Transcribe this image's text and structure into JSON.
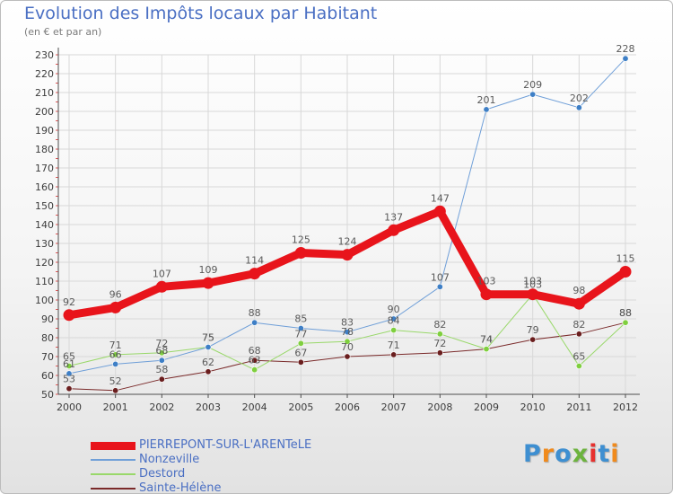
{
  "header": {
    "title": "Evolution des Impôts locaux par Habitant",
    "subtitle": "(en € et par an)"
  },
  "logo": {
    "text": "Proxiti",
    "letter_colors": [
      "#3e8fd1",
      "#f08a1c",
      "#3e8fd1",
      "#6cb33e",
      "#e6312f",
      "#3e8fd1",
      "#f08a1c"
    ]
  },
  "colors": {
    "grid": "#d8d8d8",
    "axis": "#4d4d4d",
    "tick_text": "#3c3c3c",
    "label_text": "#5a5a5a"
  },
  "chart_data": {
    "type": "line",
    "title": "Evolution des Impôts locaux par Habitant",
    "subtitle": "(en € et par an)",
    "x": [
      "2000",
      "2001",
      "2002",
      "2003",
      "2004",
      "2005",
      "2006",
      "2007",
      "2008",
      "2009",
      "2010",
      "2011",
      "2012"
    ],
    "yticks": [
      50,
      60,
      70,
      80,
      90,
      100,
      110,
      120,
      130,
      140,
      150,
      160,
      170,
      180,
      190,
      200,
      210,
      220,
      230
    ],
    "ylim": [
      50,
      230
    ],
    "grid": true,
    "legend_position": "bottom-left",
    "series": [
      {
        "name": "PIERREPONT-SUR-L'ARENTeLE",
        "color": "#e8141b",
        "line_width": 9,
        "marker_color": "#e8141b",
        "values": [
          92,
          96,
          107,
          109,
          114,
          125,
          124,
          137,
          147,
          103,
          103,
          98,
          115
        ]
      },
      {
        "name": "Nonzeville",
        "color": "#6f9fd8",
        "line_width": 1,
        "marker_color": "#3e7fc6",
        "values": [
          61,
          66,
          68,
          75,
          88,
          85,
          83,
          90,
          107,
          201,
          209,
          202,
          228
        ]
      },
      {
        "name": "Destord",
        "color": "#99d86a",
        "line_width": 1,
        "marker_color": "#7fcf3e",
        "values": [
          65,
          71,
          72,
          75,
          63,
          77,
          78,
          84,
          82,
          74,
          103,
          65,
          88
        ]
      },
      {
        "name": "Sainte-Hélène",
        "color": "#7a2a2a",
        "line_width": 1,
        "marker_color": "#6a1e1e",
        "values": [
          53,
          52,
          58,
          62,
          68,
          67,
          70,
          71,
          72,
          74,
          79,
          82,
          88
        ]
      }
    ]
  }
}
